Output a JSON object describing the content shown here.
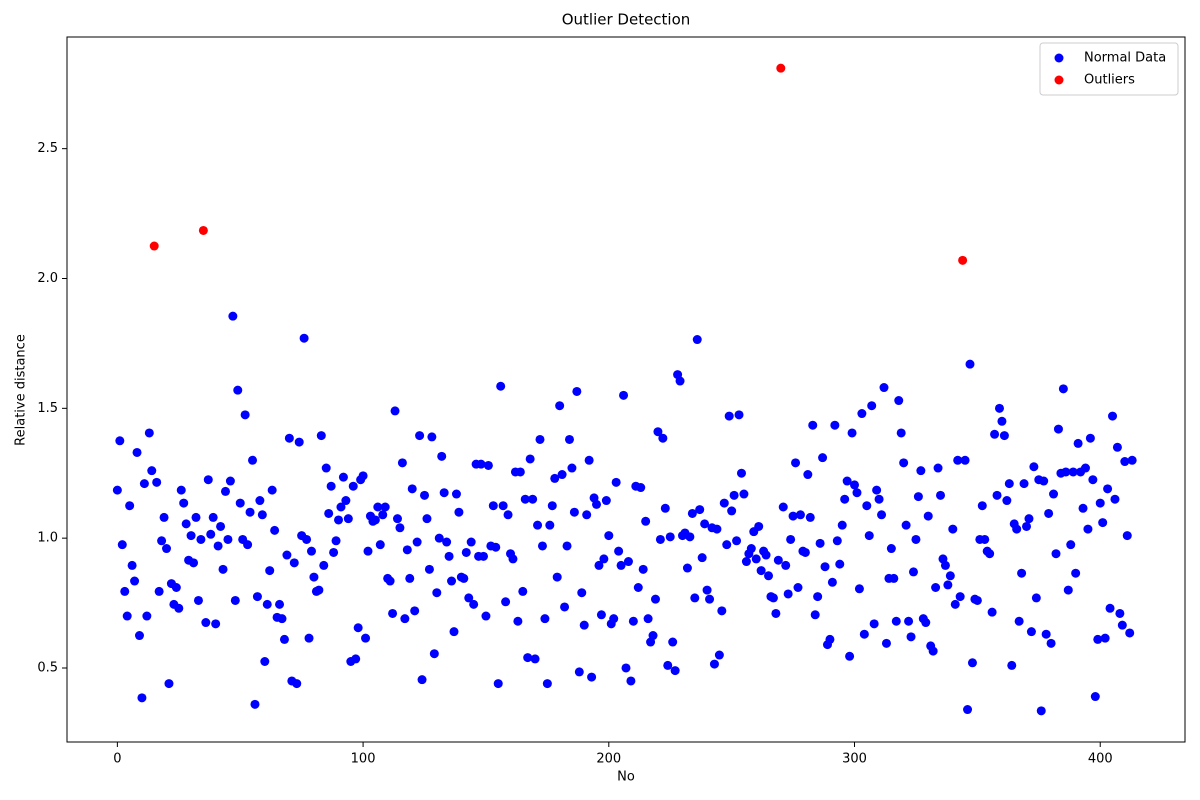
{
  "chart_data": {
    "type": "scatter",
    "title": "Outlier Detection",
    "x_label": "No",
    "y_label": "Relative distance",
    "xlim": [
      -20.5,
      434.5
    ],
    "ylim": [
      0.215,
      2.93
    ],
    "xticks": [
      0,
      100,
      200,
      300,
      400
    ],
    "yticks": [
      0.5,
      {
        "value": 1.0,
        "label": "1.0"
      },
      1.5,
      {
        "value": 2.0,
        "label": "2.0"
      },
      2.5
    ],
    "legend": "upper right",
    "series": [
      {
        "name": "Normal Data",
        "color": "#0000ff",
        "x": [
          0,
          1,
          2,
          3,
          4,
          5,
          6,
          7,
          8,
          9,
          10,
          11,
          12,
          13,
          14,
          16,
          17,
          18,
          19,
          20,
          21,
          22,
          23,
          24,
          25,
          26,
          27,
          28,
          29,
          30,
          31,
          32,
          33,
          34,
          36,
          37,
          38,
          39,
          40,
          41,
          42,
          43,
          44,
          45,
          46,
          47,
          48,
          49,
          50,
          51,
          52,
          53,
          54,
          55,
          56,
          57,
          58,
          59,
          60,
          61,
          62,
          63,
          64,
          65,
          66,
          67,
          68,
          69,
          70,
          71,
          72,
          73,
          74,
          75,
          76,
          77,
          78,
          79,
          80,
          81,
          82,
          83,
          84,
          85,
          86,
          87,
          88,
          89,
          90,
          91,
          92,
          93,
          94,
          95,
          96,
          97,
          98,
          99,
          100,
          101,
          102,
          103,
          104,
          105,
          106,
          107,
          108,
          109,
          110,
          111,
          112,
          113,
          114,
          115,
          116,
          117,
          118,
          119,
          120,
          121,
          122,
          123,
          124,
          125,
          126,
          127,
          128,
          129,
          130,
          131,
          132,
          133,
          134,
          135,
          136,
          137,
          138,
          139,
          140,
          141,
          142,
          143,
          144,
          145,
          146,
          147,
          148,
          149,
          150,
          151,
          152,
          153,
          154,
          155,
          156,
          157,
          158,
          159,
          160,
          161,
          162,
          163,
          164,
          165,
          166,
          167,
          168,
          169,
          170,
          171,
          172,
          173,
          174,
          175,
          176,
          177,
          178,
          179,
          180,
          181,
          182,
          183,
          184,
          185,
          186,
          187,
          188,
          189,
          190,
          191,
          192,
          193,
          194,
          195,
          196,
          197,
          198,
          199,
          200,
          201,
          202,
          203,
          204,
          205,
          206,
          207,
          208,
          209,
          210,
          211,
          212,
          213,
          214,
          215,
          216,
          217,
          218,
          219,
          220,
          221,
          222,
          223,
          224,
          225,
          226,
          227,
          228,
          229,
          230,
          231,
          232,
          233,
          234,
          235,
          236,
          237,
          238,
          239,
          240,
          241,
          242,
          243,
          244,
          245,
          246,
          247,
          248,
          249,
          250,
          251,
          252,
          253,
          254,
          255,
          256,
          257,
          258,
          259,
          260,
          261,
          262,
          263,
          264,
          265,
          266,
          267,
          268,
          269,
          271,
          272,
          273,
          274,
          275,
          276,
          277,
          278,
          279,
          280,
          281,
          282,
          283,
          284,
          285,
          286,
          287,
          288,
          289,
          290,
          291,
          292,
          293,
          294,
          295,
          296,
          297,
          298,
          299,
          300,
          301,
          302,
          303,
          304,
          305,
          306,
          307,
          308,
          309,
          310,
          311,
          312,
          313,
          314,
          315,
          316,
          317,
          318,
          319,
          320,
          321,
          322,
          323,
          324,
          325,
          326,
          327,
          328,
          329,
          330,
          331,
          332,
          333,
          334,
          335,
          336,
          337,
          338,
          339,
          340,
          341,
          342,
          343,
          345,
          346,
          347,
          348,
          349,
          350,
          351,
          352,
          353,
          354,
          355,
          356,
          357,
          358,
          359,
          360,
          361,
          362,
          363,
          364,
          365,
          366,
          367,
          368,
          369,
          370,
          371,
          372,
          373,
          374,
          375,
          376,
          377,
          378,
          379,
          380,
          381,
          382,
          383,
          384,
          385,
          386,
          387,
          388,
          389,
          390,
          391,
          392,
          393,
          394,
          395,
          396,
          397,
          398,
          399,
          400,
          401,
          402,
          403,
          404,
          405,
          406,
          407,
          408,
          409,
          410,
          411,
          412,
          413
        ],
        "values": [
          1.185,
          1.375,
          0.975,
          0.795,
          0.7,
          1.125,
          0.895,
          0.835,
          1.33,
          0.625,
          0.385,
          1.21,
          0.7,
          1.405,
          1.26,
          1.215,
          0.795,
          0.99,
          1.08,
          0.96,
          0.44,
          0.825,
          0.745,
          0.81,
          0.73,
          1.185,
          1.135,
          1.055,
          0.915,
          1.01,
          0.905,
          1.08,
          0.76,
          0.995,
          0.675,
          1.225,
          1.015,
          1.08,
          0.67,
          0.97,
          1.045,
          0.88,
          1.18,
          0.995,
          1.22,
          1.855,
          0.76,
          1.57,
          1.135,
          0.995,
          1.475,
          0.975,
          1.1,
          1.3,
          0.36,
          0.775,
          1.145,
          1.09,
          0.525,
          0.745,
          0.875,
          1.185,
          1.03,
          0.695,
          0.745,
          0.69,
          0.61,
          0.935,
          1.385,
          0.45,
          0.905,
          0.44,
          1.37,
          1.01,
          1.77,
          0.995,
          0.615,
          0.95,
          0.85,
          0.795,
          0.8,
          1.395,
          0.895,
          1.27,
          1.095,
          1.2,
          0.945,
          0.99,
          1.07,
          1.12,
          1.235,
          1.145,
          1.075,
          0.525,
          1.2,
          0.535,
          0.655,
          1.225,
          1.24,
          0.615,
          0.95,
          1.085,
          1.065,
          1.07,
          1.12,
          0.975,
          1.09,
          1.12,
          0.845,
          0.835,
          0.71,
          1.49,
          1.075,
          1.04,
          1.29,
          0.69,
          0.955,
          0.845,
          1.19,
          0.72,
          0.985,
          1.395,
          0.455,
          1.165,
          1.075,
          0.88,
          1.39,
          0.555,
          0.79,
          1.0,
          1.315,
          1.175,
          0.985,
          0.93,
          0.835,
          0.64,
          1.17,
          1.1,
          0.85,
          0.845,
          0.945,
          0.77,
          0.985,
          0.745,
          1.285,
          0.93,
          1.285,
          0.93,
          0.7,
          1.28,
          0.97,
          1.125,
          0.965,
          0.44,
          1.585,
          1.125,
          0.755,
          1.09,
          0.94,
          0.92,
          1.255,
          0.68,
          1.255,
          0.795,
          1.15,
          0.54,
          1.305,
          1.15,
          0.535,
          1.05,
          1.38,
          0.97,
          0.69,
          0.44,
          1.05,
          1.125,
          1.23,
          0.85,
          1.51,
          1.245,
          0.735,
          0.97,
          1.38,
          1.27,
          1.1,
          1.565,
          0.485,
          0.79,
          0.665,
          1.09,
          1.3,
          0.465,
          1.155,
          1.13,
          0.895,
          0.705,
          0.92,
          1.145,
          1.01,
          0.67,
          0.69,
          1.215,
          0.95,
          0.895,
          1.55,
          0.5,
          0.91,
          0.45,
          0.68,
          1.2,
          0.81,
          1.195,
          0.88,
          1.065,
          0.69,
          0.6,
          0.625,
          0.765,
          1.41,
          0.995,
          1.385,
          1.115,
          0.51,
          1.005,
          0.6,
          0.49,
          1.63,
          1.605,
          1.01,
          1.02,
          0.885,
          1.005,
          1.095,
          0.77,
          1.765,
          1.11,
          0.925,
          1.055,
          0.8,
          0.765,
          1.04,
          0.515,
          1.035,
          0.55,
          0.72,
          1.135,
          0.975,
          1.47,
          1.105,
          1.165,
          0.99,
          1.475,
          1.25,
          1.17,
          0.91,
          0.94,
          0.96,
          1.025,
          0.92,
          1.045,
          0.875,
          0.95,
          0.935,
          0.855,
          0.775,
          0.77,
          0.71,
          0.915,
          1.12,
          0.895,
          0.785,
          0.995,
          1.085,
          1.29,
          0.81,
          1.09,
          0.95,
          0.945,
          1.245,
          1.08,
          1.435,
          0.705,
          0.775,
          0.98,
          1.31,
          0.89,
          0.59,
          0.61,
          0.83,
          1.435,
          0.99,
          0.9,
          1.05,
          1.15,
          1.22,
          0.545,
          1.405,
          1.205,
          1.175,
          0.805,
          1.48,
          0.63,
          1.125,
          1.01,
          1.51,
          0.67,
          1.185,
          1.15,
          1.09,
          1.58,
          0.595,
          0.845,
          0.96,
          0.845,
          0.68,
          1.53,
          1.405,
          1.29,
          1.05,
          0.68,
          0.62,
          0.87,
          0.995,
          1.16,
          1.26,
          0.69,
          0.675,
          1.085,
          0.585,
          0.565,
          0.81,
          1.27,
          1.165,
          0.92,
          0.895,
          0.82,
          0.855,
          1.035,
          0.745,
          1.3,
          0.775,
          1.3,
          0.34,
          1.67,
          0.52,
          0.765,
          0.76,
          0.995,
          1.125,
          0.995,
          0.95,
          0.94,
          0.715,
          1.4,
          1.165,
          1.5,
          1.45,
          1.395,
          1.145,
          1.21,
          0.51,
          1.055,
          1.035,
          0.68,
          0.865,
          1.21,
          1.045,
          1.075,
          0.64,
          1.275,
          0.77,
          1.225,
          0.335,
          1.22,
          0.63,
          1.095,
          0.595,
          1.17,
          0.94,
          1.42,
          1.25,
          1.575,
          1.255,
          0.8,
          0.975,
          1.255,
          0.865,
          1.365,
          1.255,
          1.115,
          1.27,
          1.035,
          1.385,
          1.225,
          0.39,
          0.61,
          1.135,
          1.06,
          0.615,
          1.19,
          0.73,
          1.47,
          1.15,
          1.35,
          0.71,
          0.665,
          1.295,
          1.01,
          0.635,
          1.3
        ]
      },
      {
        "name": "Outliers",
        "color": "#ff0000",
        "x": [
          15,
          35,
          270,
          344
        ],
        "values": [
          2.125,
          2.185,
          2.81,
          2.07
        ]
      }
    ]
  }
}
